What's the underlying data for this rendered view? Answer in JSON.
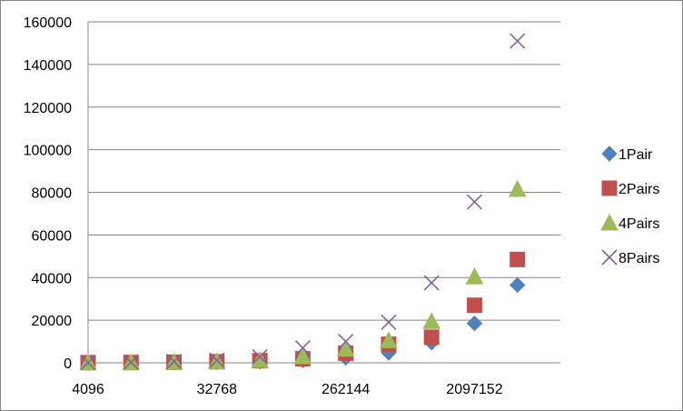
{
  "chart_data": {
    "type": "scatter",
    "title": "",
    "xlabel": "",
    "ylabel": "",
    "x_scale": "log2",
    "x": [
      4096,
      8192,
      16384,
      32768,
      65536,
      131072,
      262144,
      524288,
      1048576,
      2097152,
      4194304
    ],
    "x_tick_labels": [
      "4096",
      "32768",
      "262144",
      "2097152"
    ],
    "x_ticks": [
      4096,
      32768,
      262144,
      2097152
    ],
    "ylim": [
      0,
      160000
    ],
    "y_ticks": [
      0,
      20000,
      40000,
      60000,
      80000,
      100000,
      120000,
      140000,
      160000
    ],
    "y_tick_labels": [
      "0",
      "20000",
      "40000",
      "60000",
      "80000",
      "100000",
      "120000",
      "140000",
      "160000"
    ],
    "grid": "horizontal major gridlines",
    "legend_position": "right",
    "series": [
      {
        "name": "1Pair",
        "marker": "diamond",
        "color": "#4F81BD",
        "values": [
          40,
          80,
          150,
          300,
          600,
          1200,
          2400,
          4700,
          9500,
          18500,
          36500
        ]
      },
      {
        "name": "2Pairs",
        "marker": "square",
        "color": "#C0504D",
        "values": [
          60,
          120,
          250,
          500,
          1000,
          1900,
          4500,
          8700,
          12000,
          27000,
          48500
        ]
      },
      {
        "name": "4Pairs",
        "marker": "triangle",
        "color": "#9BBB59",
        "values": [
          80,
          160,
          320,
          650,
          1300,
          3000,
          6500,
          10500,
          19500,
          40500,
          81500
        ]
      },
      {
        "name": "8Pairs",
        "marker": "x",
        "color": "#8064A2",
        "values": [
          150,
          300,
          600,
          1200,
          2800,
          7000,
          10000,
          19000,
          37500,
          75500,
          151000
        ]
      }
    ]
  }
}
